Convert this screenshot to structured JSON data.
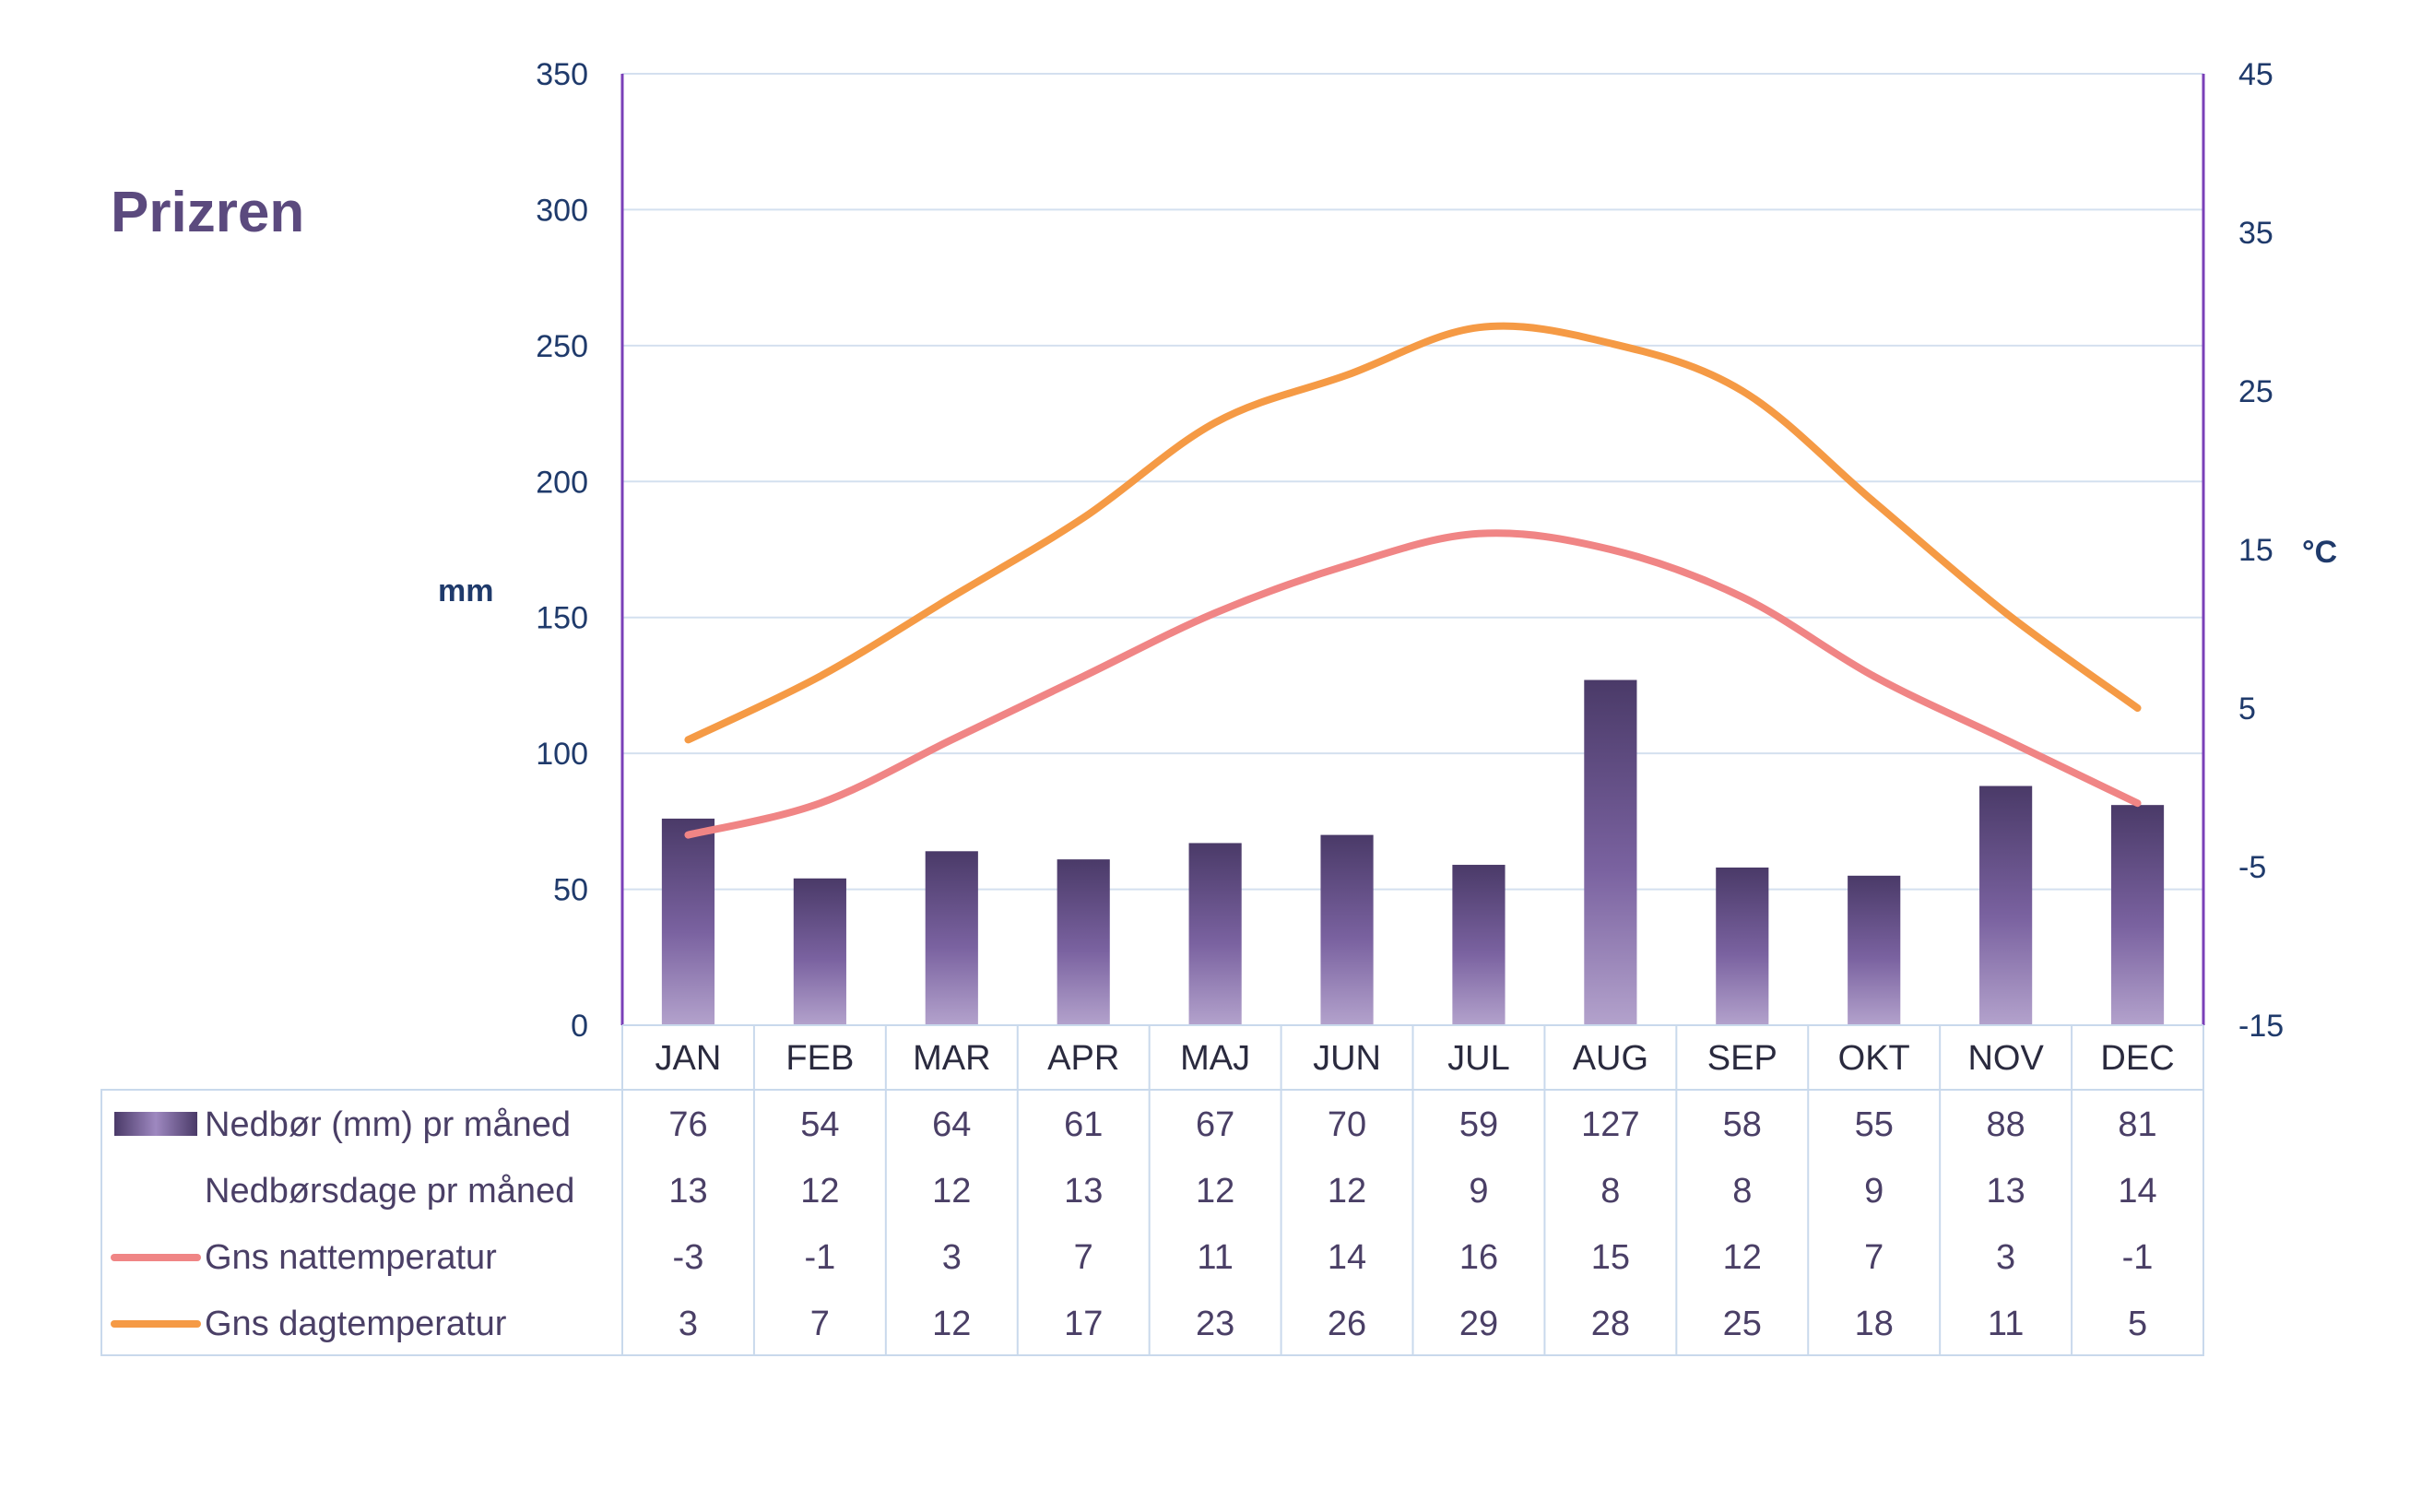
{
  "chart_data": {
    "type": "bar+line",
    "title": "Prizren",
    "categories": [
      "JAN",
      "FEB",
      "MAR",
      "APR",
      "MAJ",
      "JUN",
      "JUL",
      "AUG",
      "SEP",
      "OKT",
      "NOV",
      "DEC"
    ],
    "y_left": {
      "label": "mm",
      "min": 0,
      "max": 350,
      "ticks": [
        0,
        50,
        100,
        150,
        200,
        250,
        300,
        350
      ]
    },
    "y_right": {
      "label": "°C",
      "min": -15,
      "max": 45,
      "ticks": [
        -15,
        -5,
        5,
        15,
        25,
        35,
        45
      ]
    },
    "grid": true,
    "series": [
      {
        "name": "Nedbør (mm) pr måned",
        "type": "bar",
        "axis": "left",
        "color": "#5a4878",
        "values": [
          76,
          54,
          64,
          61,
          67,
          70,
          59,
          127,
          58,
          55,
          88,
          81
        ]
      },
      {
        "name": "Nedbørsdage pr måned",
        "type": "table-only",
        "values": [
          13,
          12,
          12,
          13,
          12,
          12,
          9,
          8,
          8,
          9,
          13,
          14
        ]
      },
      {
        "name": "Gns nattemperatur",
        "type": "line",
        "axis": "right",
        "color": "#f08585",
        "values": [
          -3,
          -1,
          3,
          7,
          11,
          14,
          16,
          15,
          12,
          7,
          3,
          -1
        ]
      },
      {
        "name": "Gns dagtemperatur",
        "type": "line",
        "axis": "right",
        "color": "#f59a45",
        "values": [
          3,
          7,
          12,
          17,
          23,
          26,
          29,
          28,
          25,
          18,
          11,
          5
        ]
      }
    ]
  }
}
